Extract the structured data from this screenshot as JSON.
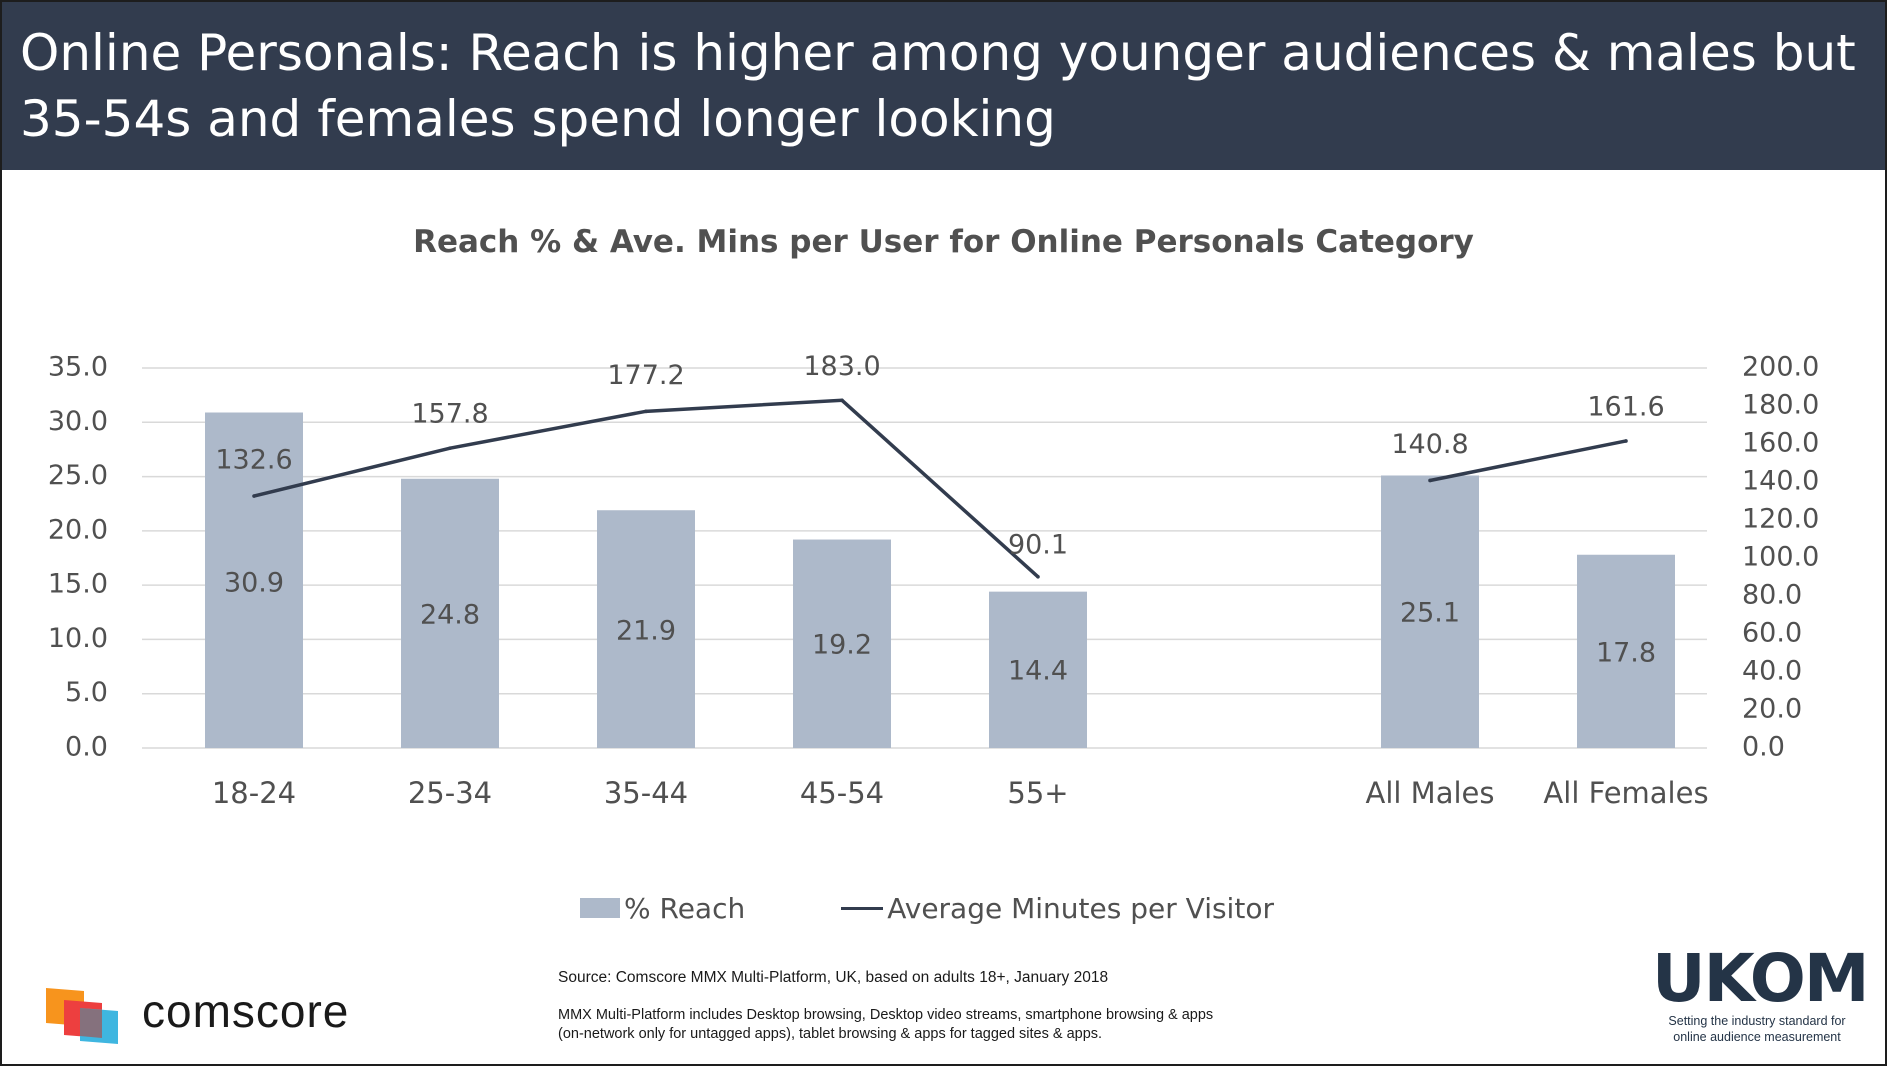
{
  "header": {
    "title": "Online Personals: Reach is higher among younger audiences & males but 35-54s and females spend longer looking"
  },
  "chart_data": {
    "type": "bar",
    "title": "Reach % & Ave. Mins per User for Online Personals Category",
    "categories": [
      "18-24",
      "25-34",
      "35-44",
      "45-54",
      "55+",
      "All Males",
      "All Females"
    ],
    "series": [
      {
        "name": "% Reach",
        "type": "bar",
        "axis": "left",
        "color": "#adb9ca",
        "values": [
          30.9,
          24.8,
          21.9,
          19.2,
          14.4,
          25.1,
          17.8
        ]
      },
      {
        "name": "Average Minutes per Visitor",
        "type": "line",
        "axis": "right",
        "color": "#323c4e",
        "segments": [
          [
            0,
            1,
            2,
            3,
            4
          ],
          [
            5,
            6
          ]
        ],
        "values": [
          132.6,
          157.8,
          177.2,
          183.0,
          90.1,
          140.8,
          161.6
        ]
      }
    ],
    "y_left": {
      "ylim": [
        0,
        35
      ],
      "ticks": [
        "35.0",
        "30.0",
        "25.0",
        "20.0",
        "15.0",
        "10.0",
        "5.0",
        "0.0"
      ]
    },
    "y_right": {
      "ylim": [
        0,
        200
      ],
      "ticks": [
        "200.0",
        "180.0",
        "160.0",
        "140.0",
        "120.0",
        "100.0",
        "80.0",
        "60.0",
        "40.0",
        "20.0",
        "0.0"
      ]
    },
    "grid": true,
    "legend_position": "bottom"
  },
  "legend": {
    "reach_label": "% Reach",
    "minutes_label": "Average Minutes per Visitor"
  },
  "footer": {
    "source": "Source: Comscore MMX Multi-Platform, UK, based on adults 18+, January 2018",
    "note_line1": "MMX Multi-Platform includes Desktop browsing, Desktop video streams, smartphone browsing & apps",
    "note_line2": "(on-network only for untagged apps), tablet browsing & apps for tagged sites & apps.",
    "comscore_brand": "comscore",
    "ukom_brand": "UKOM",
    "ukom_tagline1": "Setting the industry standard for",
    "ukom_tagline2": "online audience measurement"
  },
  "colors": {
    "header_bg": "#323c4e",
    "bar": "#adb9ca",
    "line": "#323c4e",
    "grid": "#d9d9d9",
    "text": "#505050",
    "comscore_orange": "#f7941d",
    "comscore_red": "#ed3f3f",
    "comscore_blue": "#3fb6e0"
  }
}
